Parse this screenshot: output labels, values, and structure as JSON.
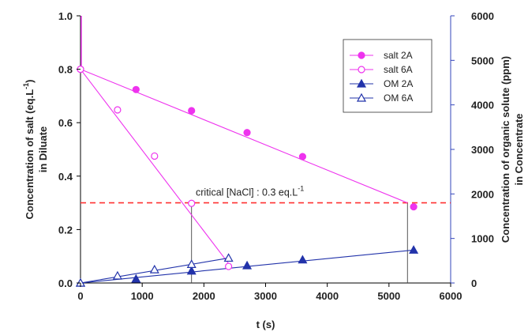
{
  "chart_data": {
    "type": "scatter",
    "xlabel": "t (s)",
    "ylabel_left": [
      "Concentration of salt (eq.L",
      "-1",
      ")",
      "in Diluate"
    ],
    "ylabel_right": [
      "Concentration of organic solute (ppm)",
      "in Concentrate"
    ],
    "xlim": [
      0,
      6000
    ],
    "ylim_left": [
      0,
      1.0
    ],
    "ylim_right": [
      0,
      6000
    ],
    "x_ticks": [
      0,
      1000,
      2000,
      3000,
      4000,
      5000,
      6000
    ],
    "y_left_ticks": [
      "0.0",
      "0.2",
      "0.4",
      "0.6",
      "0.8",
      "1.0"
    ],
    "y_right_ticks": [
      0,
      1000,
      2000,
      3000,
      4000,
      5000,
      6000
    ],
    "legend_position": "top-right",
    "series": [
      {
        "name": "salt 2A",
        "axis": "left",
        "marker": "circle",
        "filled": true,
        "color": "#ee33ee",
        "x": [
          0,
          900,
          1800,
          2700,
          3600,
          5400
        ],
        "y": [
          0.8,
          0.724,
          0.645,
          0.563,
          0.473,
          0.285
        ]
      },
      {
        "name": "salt 6A",
        "axis": "left",
        "marker": "circle",
        "filled": false,
        "color": "#ee33ee",
        "x": [
          0,
          600,
          1200,
          1800,
          2400
        ],
        "y": [
          0.8,
          0.648,
          0.475,
          0.298,
          0.062
        ]
      },
      {
        "name": "OM 2A",
        "axis": "right",
        "marker": "triangle",
        "filled": true,
        "color": "#2233aa",
        "x": [
          0,
          900,
          1800,
          2700,
          3600,
          5400
        ],
        "y": [
          0,
          90,
          270,
          390,
          520,
          740
        ]
      },
      {
        "name": "OM 6A",
        "axis": "right",
        "marker": "triangle",
        "filled": false,
        "color": "#2233aa",
        "x": [
          0,
          600,
          1200,
          1800,
          2400
        ],
        "y": [
          0,
          160,
          300,
          420,
          560
        ]
      }
    ],
    "fit_lines": [
      {
        "series": "salt 2A",
        "axis": "left",
        "color": "#ee33ee",
        "from": [
          0,
          0.8
        ],
        "to": [
          5300,
          0.3
        ]
      },
      {
        "series": "salt 6A",
        "axis": "left",
        "color": "#ee33ee",
        "from": [
          0,
          0.8
        ],
        "to": [
          2400,
          0.073
        ]
      },
      {
        "series": "OM 2A",
        "axis": "right",
        "color": "#2233aa",
        "from": [
          0,
          0
        ],
        "to": [
          5400,
          740
        ]
      },
      {
        "series": "OM 6A",
        "axis": "right",
        "color": "#2233aa",
        "from": [
          0,
          0
        ],
        "to": [
          2400,
          560
        ]
      }
    ],
    "reference_line": {
      "axis": "left",
      "y": 0.3,
      "color": "#ff3333",
      "style": "dashed",
      "label": "critical [NaCl] : 0.3 eq.L",
      "label_sup": "-1"
    },
    "drop_lines": [
      1800,
      5300
    ],
    "left_axis_spike": {
      "x": 0,
      "y_from": 0.8,
      "y_to": 1.0
    }
  }
}
